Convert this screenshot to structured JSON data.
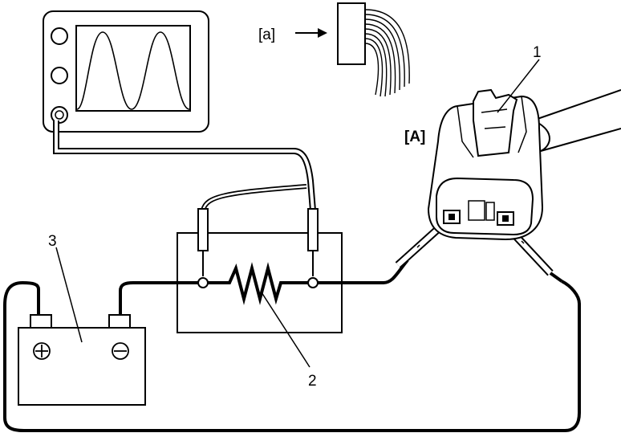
{
  "labels": {
    "callout_1": "1",
    "callout_2": "2",
    "callout_3": "3",
    "connector_label": "[A]",
    "inset_label": "[a]"
  },
  "symbols": {
    "positive_terminal": "⊕",
    "negative_terminal": "⊖"
  },
  "colors": {
    "line": "#000000",
    "background": "#ffffff"
  }
}
